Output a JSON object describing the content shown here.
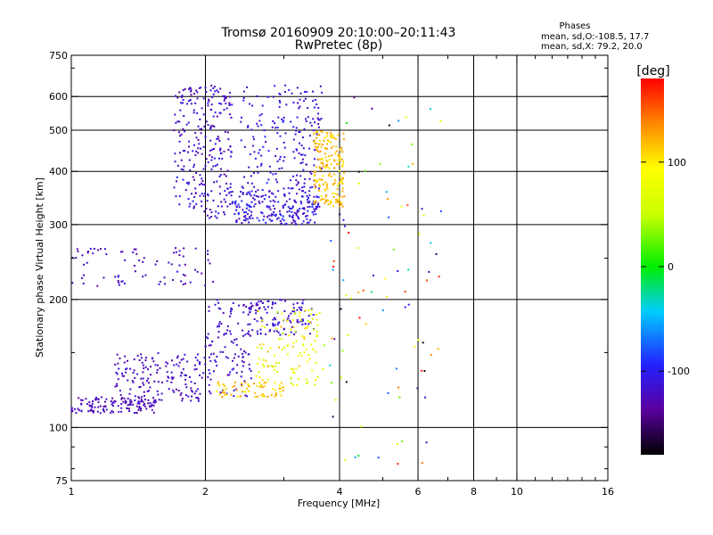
{
  "chart_data": {
    "type": "scatter",
    "title": "Tromsø 20160909 20:10:00–20:11:43",
    "subtitle": "RwPretec (8p)",
    "xlabel": "Frequency [MHz]",
    "ylabel": "Stationary phase Virtual Height [km]",
    "x_scale": "log",
    "y_scale": "log",
    "xlim": [
      1,
      16
    ],
    "ylim": [
      75,
      750
    ],
    "x_ticks": [
      1,
      2,
      4,
      6,
      8,
      10,
      16
    ],
    "y_ticks": [
      75,
      100,
      200,
      300,
      400,
      500,
      600,
      750
    ],
    "grid": true,
    "stats": {
      "heading": "Phases",
      "o_line": "mean, sd,O:-108.5, 17.7",
      "x_line": "mean, sd,X: 79.2, 20.0"
    },
    "colorbar": {
      "label": "[deg]",
      "range": [
        -180,
        180
      ],
      "ticks": [
        100,
        0,
        -100
      ]
    },
    "clusters": [
      {
        "x": [
          1.0,
          1.55
        ],
        "y": [
          108,
          118
        ],
        "phase": [
          -135,
          -115
        ],
        "count": 130
      },
      {
        "x": [
          1.25,
          2.0
        ],
        "y": [
          115,
          150
        ],
        "phase": [
          -135,
          -110
        ],
        "count": 160
      },
      {
        "x": [
          2.0,
          2.55
        ],
        "y": [
          118,
          200
        ],
        "phase": [
          -130,
          -105
        ],
        "count": 120
      },
      {
        "x": [
          2.5,
          3.5
        ],
        "y": [
          165,
          200
        ],
        "phase": [
          -130,
          -100
        ],
        "count": 110
      },
      {
        "x": [
          2.1,
          3.0
        ],
        "y": [
          118,
          128
        ],
        "phase": [
          95,
          135
        ],
        "count": 70
      },
      {
        "x": [
          2.6,
          3.7
        ],
        "y": [
          125,
          190
        ],
        "phase": [
          40,
          120
        ],
        "count": 120
      },
      {
        "x": [
          1.0,
          2.1
        ],
        "y": [
          215,
          265
        ],
        "phase": [
          -135,
          -110
        ],
        "count": 80
      },
      {
        "x": [
          1.7,
          2.3
        ],
        "y": [
          310,
          640
        ],
        "phase": [
          -135,
          -100
        ],
        "count": 260
      },
      {
        "x": [
          2.3,
          3.6
        ],
        "y": [
          300,
          360
        ],
        "phase": [
          -130,
          -90
        ],
        "count": 200
      },
      {
        "x": [
          2.4,
          3.2
        ],
        "y": [
          360,
          640
        ],
        "phase": [
          -125,
          -90
        ],
        "count": 110
      },
      {
        "x": [
          3.2,
          3.65
        ],
        "y": [
          320,
          640
        ],
        "phase": [
          -130,
          -100
        ],
        "count": 100
      },
      {
        "x": [
          3.5,
          4.1
        ],
        "y": [
          330,
          500
        ],
        "phase": [
          95,
          135
        ],
        "count": 190
      },
      {
        "x": [
          3.8,
          6.8
        ],
        "y": [
          78,
          650
        ],
        "phase": [
          -180,
          180
        ],
        "count": 90
      }
    ]
  }
}
